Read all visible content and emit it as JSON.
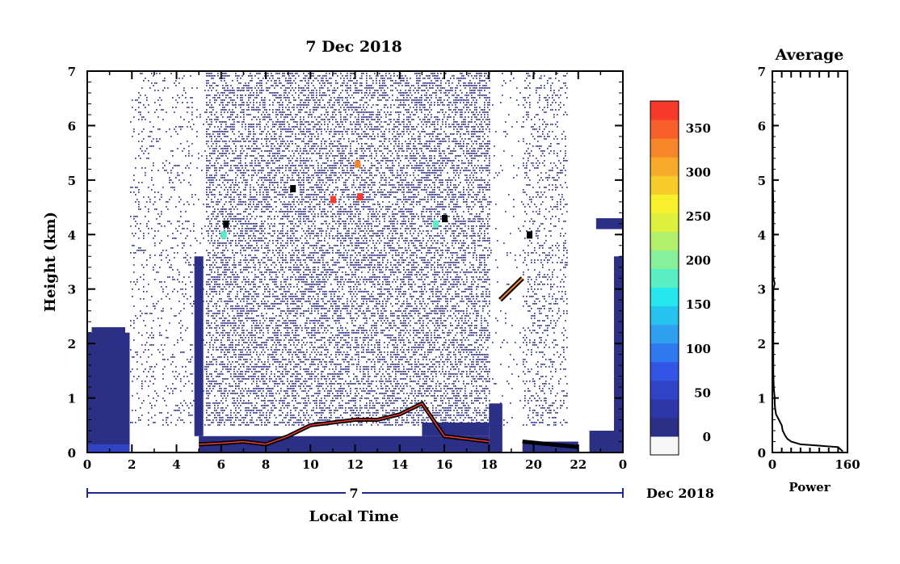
{
  "main_plot": {
    "title": "7 Dec 2018",
    "xlabel": "Local Time",
    "ylabel": "Height (km)",
    "date_day": "7",
    "date_suffix": "Dec 2018"
  },
  "colorbar": {
    "tick_labels": [
      "0",
      "50",
      "100",
      "150",
      "200",
      "250",
      "300",
      "350"
    ],
    "levels": [
      "#f7f7f7",
      "#2b2f86",
      "#2e37a7",
      "#2f44c6",
      "#3355e6",
      "#2f79f0",
      "#2f9ff0",
      "#27c3ef",
      "#25e8ef",
      "#58f0c2",
      "#86f09a",
      "#b2f06b",
      "#ddf03c",
      "#f7f02a",
      "#f7cc2a",
      "#f7a92a",
      "#f7852a",
      "#f7602a",
      "#f73a2a"
    ]
  },
  "average_panel": {
    "title": "Average",
    "xlabel": "Power",
    "x_tick_labels": [
      "0",
      "160"
    ]
  },
  "colors": {
    "background_signal": "#2b2f86",
    "speckle": "#2b2f86",
    "axis": "#000000",
    "tick_accent": "#1c2a8a"
  },
  "chart_data": [
    {
      "type": "heatmap",
      "title": "7 Dec 2018",
      "xlabel": "Local Time",
      "ylabel": "Height (km)",
      "x_ticks": [
        "0",
        "2",
        "4",
        "6",
        "8",
        "10",
        "12",
        "14",
        "16",
        "18",
        "20",
        "22",
        "0"
      ],
      "x_range_hours": [
        0,
        24
      ],
      "y_ticks": [
        "0",
        "1",
        "2",
        "3",
        "4",
        "5",
        "6",
        "7"
      ],
      "y_range_km": [
        0,
        7
      ],
      "colorbar_range": [
        0,
        380
      ],
      "colorbar_ticks": [
        0,
        50,
        100,
        150,
        200,
        250,
        300,
        350
      ],
      "features": [
        {
          "name": "low-level echo",
          "time_hours": [
            0,
            1.9
          ],
          "height_km": [
            0,
            2.3
          ],
          "value": 0
        },
        {
          "name": "boundary layer top",
          "time_hours": [
            5,
            18
          ],
          "height_km_approx": [
            0.2,
            1.1
          ],
          "value": 380
        },
        {
          "name": "elevated layer",
          "time_hours": [
            18.5,
            19.5
          ],
          "height_km": [
            2.8,
            3.2
          ],
          "value": 380
        },
        {
          "name": "evening layer",
          "time_hours": [
            19.5,
            22
          ],
          "height_km": [
            0.1,
            0.2
          ],
          "value": 380
        },
        {
          "name": "noise speckle",
          "time_hours": [
            2,
            21.5
          ],
          "height_km": [
            0.5,
            7
          ],
          "value": 0
        }
      ]
    },
    {
      "type": "line",
      "title": "Average",
      "xlabel": "Power",
      "x_range": [
        0,
        160
      ],
      "y_range_km": [
        0,
        7
      ],
      "y_ticks": [
        "0",
        "1",
        "2",
        "3",
        "4",
        "5",
        "6",
        "7"
      ],
      "profile": {
        "height_km": [
          0.02,
          0.1,
          0.15,
          0.2,
          0.25,
          0.3,
          0.4,
          0.5,
          0.6,
          0.7,
          0.8,
          0.9,
          1.0,
          1.1,
          1.2,
          1.5,
          2.0,
          2.5,
          3.0,
          3.1,
          3.2,
          3.5,
          4.0,
          4.5,
          5.0,
          6.0,
          7.0
        ],
        "power": [
          150,
          140,
          60,
          40,
          32,
          28,
          22,
          20,
          14,
          8,
          6,
          5,
          5,
          4,
          3,
          2,
          2,
          2,
          2,
          5,
          2,
          2,
          2,
          2,
          1,
          1,
          0
        ]
      }
    }
  ]
}
